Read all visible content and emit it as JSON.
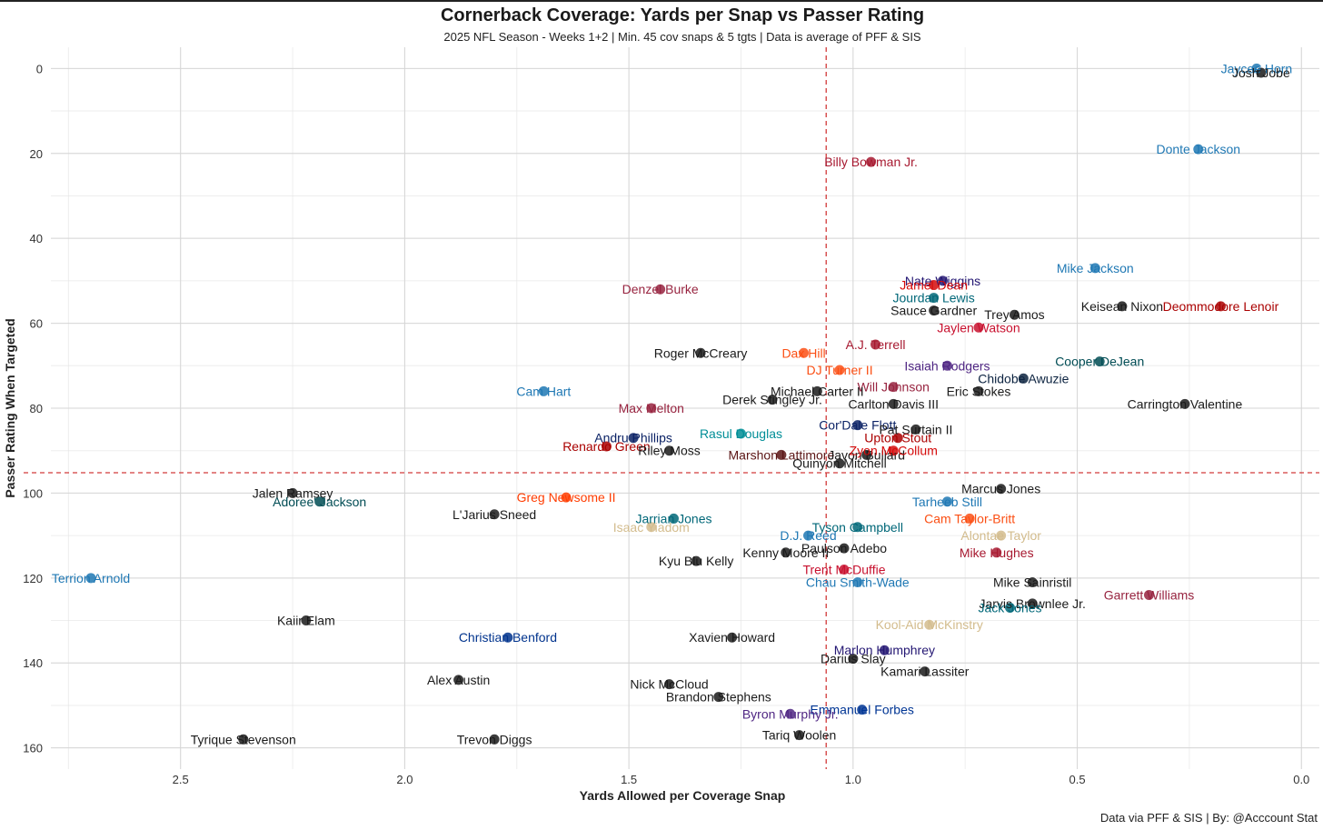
{
  "chart_data": {
    "type": "scatter",
    "title": "Cornerback Coverage: Yards per Snap vs Passer Rating",
    "subtitle": "2025 NFL Season - Weeks 1+2 | Min. 45 cov snaps & 5 tgts | Data is average of PFF & SIS",
    "xlabel": "Yards Allowed per Coverage Snap",
    "ylabel": "Passer Rating When Targeted",
    "caption": "Data via PFF & SIS | By: @Acccount Stat",
    "xlim": [
      2.85,
      -0.04
    ],
    "ylim": [
      -5,
      165
    ],
    "x_reversed": true,
    "y_reversed": true,
    "x_ticks": [
      2.5,
      2.0,
      1.5,
      1.0,
      0.5,
      0.0
    ],
    "x_tick_labels": [
      "2.5",
      "2.0",
      "1.5",
      "1.0",
      "0.5",
      "0.0"
    ],
    "y_ticks": [
      0,
      20,
      40,
      60,
      80,
      100,
      120,
      140,
      160
    ],
    "y_tick_labels": [
      "0",
      "20",
      "40",
      "60",
      "80",
      "100",
      "120",
      "140",
      "160"
    ],
    "ref_x": 1.06,
    "ref_y": 95.2,
    "points": [
      {
        "name": "Jaycee Horn",
        "x": 0.1,
        "y": 0,
        "color": "#1f78b4"
      },
      {
        "name": "Josh Jobe",
        "x": 0.09,
        "y": 1,
        "color": "#1a1a1a"
      },
      {
        "name": "Donte Jackson",
        "x": 0.23,
        "y": 19,
        "color": "#1f78b4"
      },
      {
        "name": "Billy Bowman Jr.",
        "x": 0.96,
        "y": 22,
        "color": "#a71930"
      },
      {
        "name": "Nate Wiggins",
        "x": 0.8,
        "y": 50,
        "color": "#241773"
      },
      {
        "name": "Mike Jackson",
        "x": 0.46,
        "y": 47,
        "color": "#1f78b4"
      },
      {
        "name": "Denzel Burke",
        "x": 1.43,
        "y": 52,
        "color": "#97233f"
      },
      {
        "name": "Jamel Dean",
        "x": 0.82,
        "y": 51,
        "color": "#d50a0a"
      },
      {
        "name": "Keisean Nixon",
        "x": 0.4,
        "y": 56,
        "color": "#1a1a1a"
      },
      {
        "name": "Jourdan Lewis",
        "x": 0.82,
        "y": 54,
        "color": "#006778"
      },
      {
        "name": "Deommodore Lenoir",
        "x": 0.18,
        "y": 56,
        "color": "#aa0000"
      },
      {
        "name": "Sauce Gardner",
        "x": 0.82,
        "y": 57,
        "color": "#1a1a1a"
      },
      {
        "name": "Trey Amos",
        "x": 0.64,
        "y": 58,
        "color": "#1a1a1a"
      },
      {
        "name": "Jaylen Watson",
        "x": 0.72,
        "y": 61,
        "color": "#c8102e"
      },
      {
        "name": "A.J. Terrell",
        "x": 0.95,
        "y": 65,
        "color": "#a71930"
      },
      {
        "name": "Dax Hill",
        "x": 1.11,
        "y": 67,
        "color": "#fb4f14"
      },
      {
        "name": "Roger McCreary",
        "x": 1.34,
        "y": 67,
        "color": "#1a1a1a"
      },
      {
        "name": "Isaiah Rodgers",
        "x": 0.79,
        "y": 70,
        "color": "#4f2683"
      },
      {
        "name": "Cooper DeJean",
        "x": 0.45,
        "y": 69,
        "color": "#004c54"
      },
      {
        "name": "DJ Turner II",
        "x": 1.03,
        "y": 71,
        "color": "#fb4f14"
      },
      {
        "name": "Will Johnson",
        "x": 0.91,
        "y": 75,
        "color": "#97233f"
      },
      {
        "name": "Chidobe Awuzie",
        "x": 0.62,
        "y": 73,
        "color": "#0c2340"
      },
      {
        "name": "Michael Carter II",
        "x": 1.08,
        "y": 76,
        "color": "#1a1a1a"
      },
      {
        "name": "Carrington Valentine",
        "x": 0.26,
        "y": 79,
        "color": "#1a1a1a"
      },
      {
        "name": "Cam Hart",
        "x": 1.69,
        "y": 76,
        "color": "#1f78b4"
      },
      {
        "name": "Derek Stingley Jr.",
        "x": 1.18,
        "y": 78,
        "color": "#1a1a1a"
      },
      {
        "name": "Carlton Davis III",
        "x": 0.91,
        "y": 79,
        "color": "#1a1a1a"
      },
      {
        "name": "Eric Stokes",
        "x": 0.72,
        "y": 76,
        "color": "#1a1a1a"
      },
      {
        "name": "Max Melton",
        "x": 1.45,
        "y": 80,
        "color": "#97233f"
      },
      {
        "name": "Cor'Dale Flott",
        "x": 0.99,
        "y": 84,
        "color": "#0b2265"
      },
      {
        "name": "Pat Surtain II",
        "x": 0.86,
        "y": 85,
        "color": "#1a1a1a"
      },
      {
        "name": "Rasul Douglas",
        "x": 1.25,
        "y": 86,
        "color": "#008e97"
      },
      {
        "name": "Andru Phillips",
        "x": 1.49,
        "y": 87,
        "color": "#0b2265"
      },
      {
        "name": "Upton Stout",
        "x": 0.9,
        "y": 87,
        "color": "#aa0000"
      },
      {
        "name": "Marshon Lattimore",
        "x": 1.16,
        "y": 91,
        "color": "#5a1414"
      },
      {
        "name": "Renardo Green",
        "x": 1.55,
        "y": 89,
        "color": "#aa0000"
      },
      {
        "name": "Riley Moss",
        "x": 1.41,
        "y": 90,
        "color": "#1a1a1a"
      },
      {
        "name": "Javon Bullard",
        "x": 0.97,
        "y": 91,
        "color": "#1a1a1a"
      },
      {
        "name": "Zyon McCollum",
        "x": 0.91,
        "y": 90,
        "color": "#d50a0a"
      },
      {
        "name": "Quinyon Mitchell",
        "x": 1.03,
        "y": 93,
        "color": "#1a1a1a"
      },
      {
        "name": "Marcus Jones",
        "x": 0.67,
        "y": 99,
        "color": "#1a1a1a"
      },
      {
        "name": "Jalen Ramsey",
        "x": 2.25,
        "y": 100,
        "color": "#1a1a1a"
      },
      {
        "name": "Adoree' Jackson",
        "x": 2.19,
        "y": 102,
        "color": "#004c54"
      },
      {
        "name": "Greg Newsome II",
        "x": 1.64,
        "y": 101,
        "color": "#ff3c00"
      },
      {
        "name": "Tarheeb Still",
        "x": 0.79,
        "y": 102,
        "color": "#1f78b4"
      },
      {
        "name": "L'Jarius Sneed",
        "x": 1.8,
        "y": 105,
        "color": "#1a1a1a"
      },
      {
        "name": "Jarrian Jones",
        "x": 1.4,
        "y": 106,
        "color": "#006778"
      },
      {
        "name": "Cam Taylor-Britt",
        "x": 0.74,
        "y": 106,
        "color": "#fb4f14"
      },
      {
        "name": "Tyson Campbell",
        "x": 0.99,
        "y": 108,
        "color": "#006778"
      },
      {
        "name": "Isaac Yiadom",
        "x": 1.45,
        "y": 108,
        "color": "#d3bc8d"
      },
      {
        "name": "D.J. Reed",
        "x": 1.1,
        "y": 110,
        "color": "#1f78b4"
      },
      {
        "name": "Alontae Taylor",
        "x": 0.67,
        "y": 110,
        "color": "#d3bc8d"
      },
      {
        "name": "Paulson Adebo",
        "x": 1.02,
        "y": 113,
        "color": "#1a1a1a"
      },
      {
        "name": "Kenny Moore II",
        "x": 1.15,
        "y": 114,
        "color": "#1a1a1a"
      },
      {
        "name": "Mike Hughes",
        "x": 0.68,
        "y": 114,
        "color": "#a71930"
      },
      {
        "name": "Kyu Blu Kelly",
        "x": 1.35,
        "y": 116,
        "color": "#1a1a1a"
      },
      {
        "name": "Trent McDuffie",
        "x": 1.02,
        "y": 118,
        "color": "#c8102e"
      },
      {
        "name": "Mike Sainristil",
        "x": 0.6,
        "y": 121,
        "color": "#1a1a1a"
      },
      {
        "name": "Terrion Arnold",
        "x": 2.7,
        "y": 120,
        "color": "#1f78b4"
      },
      {
        "name": "Chau Smith-Wade",
        "x": 0.99,
        "y": 121,
        "color": "#1f78b4"
      },
      {
        "name": "Jarvis Brownlee Jr.",
        "x": 0.6,
        "y": 126,
        "color": "#1a1a1a"
      },
      {
        "name": "Garrett Williams",
        "x": 0.34,
        "y": 124,
        "color": "#97233f"
      },
      {
        "name": "Kaiir Elam",
        "x": 2.22,
        "y": 130,
        "color": "#1a1a1a"
      },
      {
        "name": "Jack Jones",
        "x": 0.65,
        "y": 127,
        "color": "#006778"
      },
      {
        "name": "Kool-Aid McKinstry",
        "x": 0.83,
        "y": 131,
        "color": "#d3bc8d"
      },
      {
        "name": "Christian Benford",
        "x": 1.77,
        "y": 134,
        "color": "#00338d"
      },
      {
        "name": "Xavien Howard",
        "x": 1.27,
        "y": 134,
        "color": "#1a1a1a"
      },
      {
        "name": "Marlon Humphrey",
        "x": 0.93,
        "y": 137,
        "color": "#241773"
      },
      {
        "name": "Darius Slay",
        "x": 1.0,
        "y": 139,
        "color": "#1a1a1a"
      },
      {
        "name": "Alex Austin",
        "x": 1.88,
        "y": 144,
        "color": "#1a1a1a"
      },
      {
        "name": "Nick McCloud",
        "x": 1.41,
        "y": 145,
        "color": "#1a1a1a"
      },
      {
        "name": "Kamari Lassiter",
        "x": 0.84,
        "y": 142,
        "color": "#1a1a1a"
      },
      {
        "name": "Brandon Stephens",
        "x": 1.3,
        "y": 148,
        "color": "#1a1a1a"
      },
      {
        "name": "Emmanuel Forbes",
        "x": 0.98,
        "y": 151,
        "color": "#003594"
      },
      {
        "name": "Byron Murphy Jr.",
        "x": 1.14,
        "y": 152,
        "color": "#4f2683"
      },
      {
        "name": "Trevon Diggs",
        "x": 1.8,
        "y": 158,
        "color": "#1a1a1a"
      },
      {
        "name": "Tyrique Stevenson",
        "x": 2.36,
        "y": 158,
        "color": "#1a1a1a"
      },
      {
        "name": "Tariq Woolen",
        "x": 1.12,
        "y": 157,
        "color": "#1a1a1a"
      }
    ]
  }
}
